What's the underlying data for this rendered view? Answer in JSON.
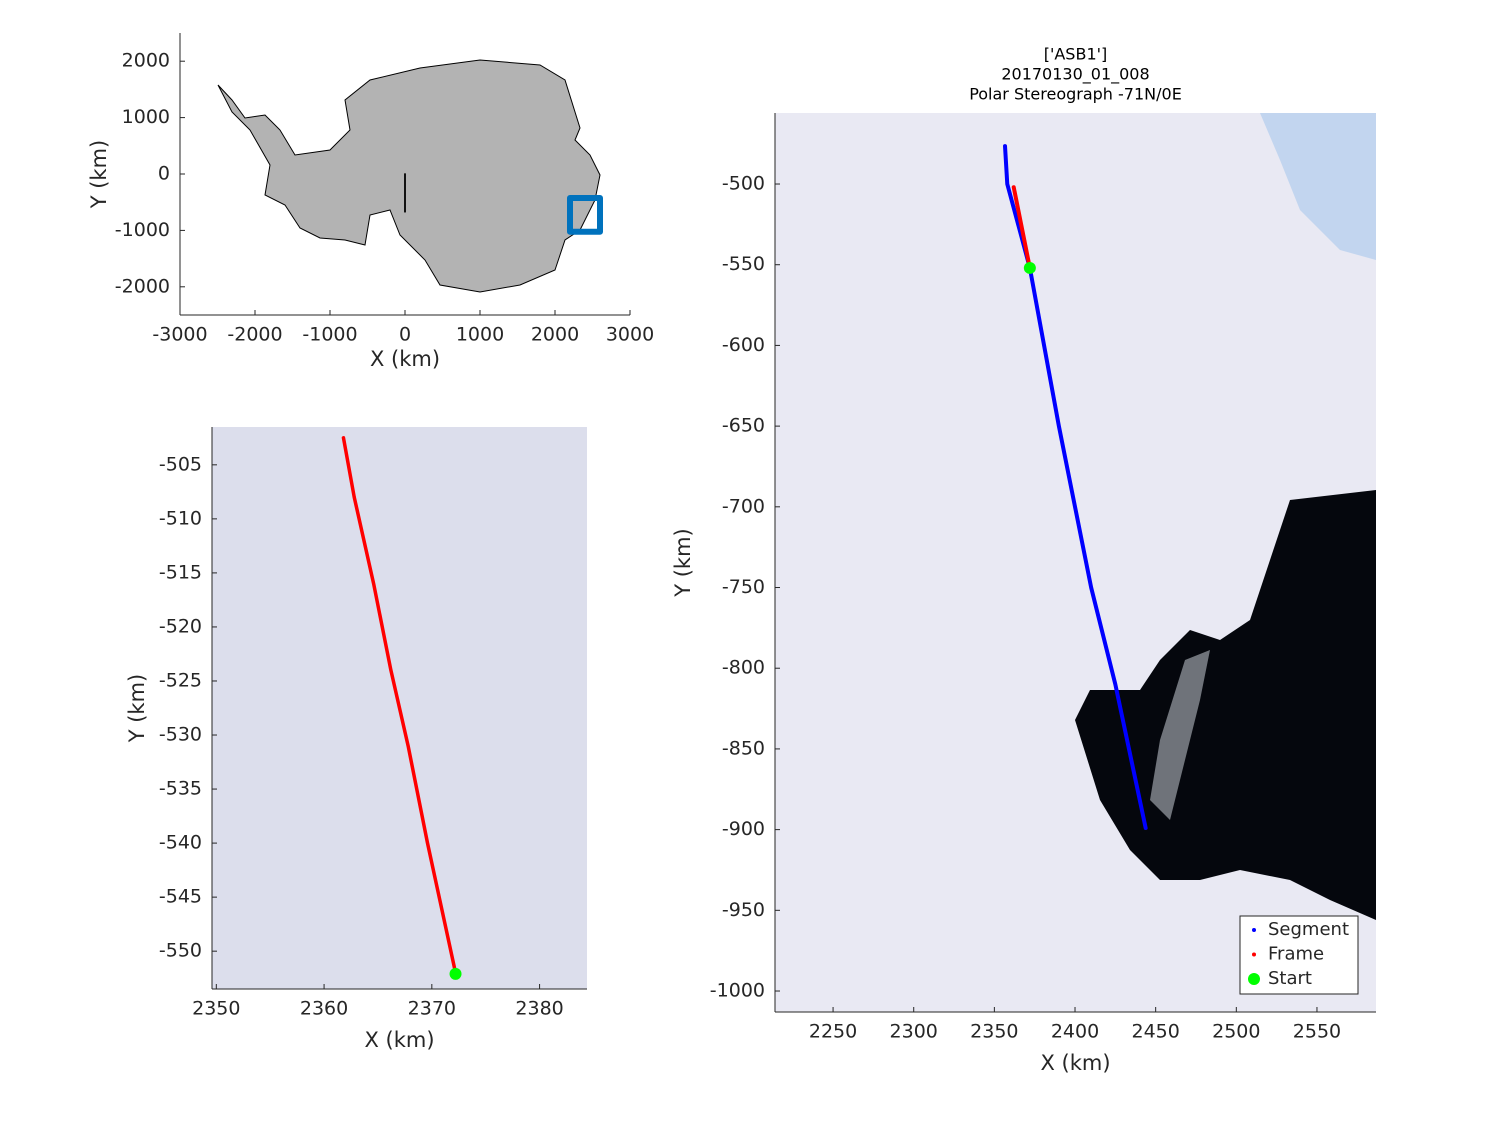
{
  "chart_data": [
    {
      "type": "line",
      "xlabel": "X (km)",
      "ylabel": "Y (km)",
      "xlim": [
        -3000,
        3000
      ],
      "ylim": [
        -2500,
        2500
      ],
      "xticks": [
        -3000,
        -2000,
        -1000,
        0,
        1000,
        2000,
        3000
      ],
      "yticks": [
        -2000,
        -1000,
        0,
        1000,
        2000
      ],
      "series": [
        {
          "color": "#000000",
          "x": [
            0,
            0
          ],
          "values": [
            0,
            -670
          ]
        },
        {
          "color": "#0072bd",
          "x": [
            2200,
            2600,
            2600,
            2200,
            2200
          ],
          "values": [
            -425,
            -425,
            -1025,
            -1025,
            -425
          ]
        }
      ]
    },
    {
      "type": "line",
      "xlabel": "X (km)",
      "ylabel": "Y (km)",
      "xlim": [
        2349.6,
        2384.4
      ],
      "ylim": [
        -553.5,
        -501.5
      ],
      "xticks": [
        2350,
        2360,
        2370,
        2380
      ],
      "yticks": [
        -550,
        -545,
        -540,
        -535,
        -530,
        -525,
        -520,
        -515,
        -510,
        -505
      ],
      "series": [
        {
          "name": "Frame",
          "color": "#ff0000",
          "x": [
            2361.8,
            2362.8,
            2364.6,
            2366.2,
            2367.8,
            2369.6,
            2372.2
          ],
          "values": [
            -502.5,
            -508,
            -516,
            -524,
            -531,
            -540,
            -552
          ]
        },
        {
          "name": "Start",
          "color": "#00ff00",
          "x": [
            2372.2
          ],
          "values": [
            -552.1
          ]
        }
      ]
    },
    {
      "type": "line",
      "title": [
        "['ASB1']",
        "20170130_01_008",
        "Polar Stereograph -71N/0E"
      ],
      "xlabel": "X (km)",
      "ylabel": "Y (km)",
      "xlim": [
        2214,
        2586.6
      ],
      "ylim": [
        -1013,
        -456
      ],
      "xticks": [
        2250,
        2300,
        2350,
        2400,
        2450,
        2500,
        2550
      ],
      "yticks": [
        -1000,
        -950,
        -900,
        -850,
        -800,
        -750,
        -700,
        -650,
        -600,
        -550,
        -500
      ],
      "legend": "southeast",
      "series": [
        {
          "name": "Segment",
          "color": "#0000ff",
          "x": [
            2356.6,
            2358,
            2372,
            2390,
            2410,
            2425,
            2443.8
          ],
          "values": [
            -476.5,
            -500,
            -552,
            -650,
            -750,
            -810,
            -899
          ]
        },
        {
          "name": "Frame",
          "color": "#ff0000",
          "x": [
            2362,
            2372
          ],
          "values": [
            -502,
            -552
          ]
        },
        {
          "name": "Start",
          "color": "#00ff00",
          "x": [
            2372
          ],
          "values": [
            -552
          ]
        }
      ]
    }
  ]
}
